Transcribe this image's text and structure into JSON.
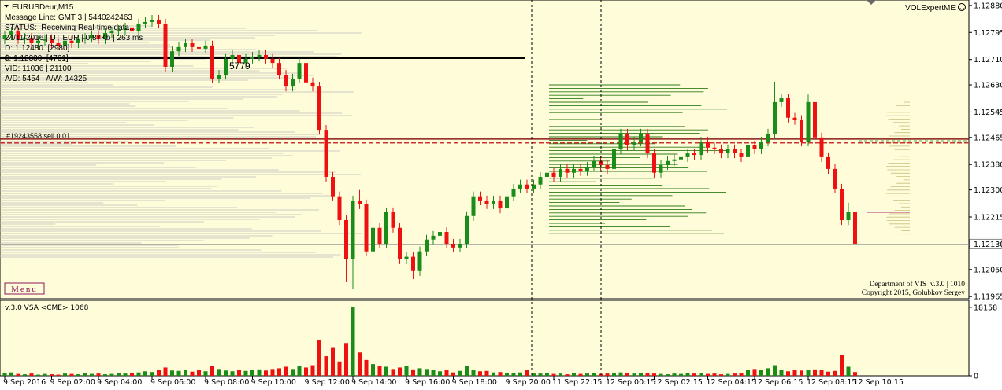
{
  "header": {
    "lines": [
      "Message Line: GMT 3 | 5440242463",
      "STATUS:  Receiving Real-time data...",
      "24/11/2016 | UT EUR | 0.87Kb | 263 ms",
      "D: 1.12480  [2980]",
      "$: 1.12330  [4761]",
      "VID: 11036 | 21100",
      "A/D: 5454 | A/W: 14325"
    ],
    "indicator": "VOLExpertME",
    "menu": "Menu",
    "credits": [
      "Department of VIS  v.3.0 | 1010",
      "Copyright 2015, Golubkov Sergey"
    ]
  },
  "chart_data": [
    {
      "type": "candlestick",
      "title": "EURUSDeur,M15",
      "categories": [
        "9 Sep 2016",
        null,
        null,
        null,
        null,
        null,
        null,
        "9 Sep 02:00",
        null,
        null,
        null,
        null,
        null,
        null,
        "9 Sep 04:00",
        null,
        null,
        null,
        null,
        null,
        null,
        null,
        "9 Sep 06:00",
        null,
        null,
        null,
        null,
        null,
        null,
        null,
        "9 Sep 08:00",
        null,
        null,
        null,
        null,
        null,
        null,
        "9 Sep 10:00",
        null,
        null,
        null,
        null,
        null,
        null,
        null,
        "9 Sep 12:00",
        null,
        null,
        null,
        null,
        null,
        null,
        "9 Sep 14:00",
        null,
        null,
        null,
        null,
        null,
        null,
        null,
        "9 Sep 16:00",
        null,
        null,
        null,
        null,
        null,
        null,
        "9 Sep 18:00",
        null,
        null,
        null,
        null,
        null,
        null,
        null,
        "9 Sep 20:00",
        null,
        null,
        null,
        null,
        null,
        null,
        "11 Sep 22:15",
        null,
        null,
        null,
        null,
        null,
        null,
        null,
        "12 Sep 00:15",
        null,
        null,
        null,
        null,
        null,
        null,
        "12 Sep 02:15",
        null,
        null,
        null,
        null,
        null,
        null,
        null,
        "12 Sep 04:15",
        null,
        null,
        null,
        null,
        null,
        null,
        "12 Sep 06:15",
        null,
        null,
        null,
        null,
        null,
        null,
        null,
        "12 Sep 08:15",
        null,
        null,
        null,
        null,
        null,
        null,
        "12 Sep 10:15"
      ],
      "open": [
        1.12774,
        1.12786,
        1.12798,
        1.12774,
        1.12778,
        1.12761,
        1.12769,
        1.12774,
        1.12761,
        1.12754,
        1.12769,
        1.12761,
        1.12774,
        1.12778,
        1.12786,
        1.12774,
        1.12793,
        1.12798,
        1.12803,
        1.12811,
        1.12798,
        1.12823,
        1.12828,
        1.12835,
        1.12823,
        1.12687,
        1.12736,
        1.12749,
        1.12761,
        1.12749,
        1.12744,
        1.12754,
        1.1265,
        1.12662,
        1.12712,
        1.12724,
        1.12699,
        1.12712,
        1.12719,
        1.12724,
        1.12712,
        1.12699,
        1.12662,
        1.12625,
        1.1265,
        1.12699,
        1.12638,
        1.12625,
        1.12489,
        1.12341,
        1.1228,
        1.12205,
        1.12082,
        1.12267,
        1.12255,
        1.12107,
        1.12181,
        1.12131,
        1.1223,
        1.12181,
        1.12082,
        1.1209,
        1.12045,
        1.12107,
        1.12144,
        1.12156,
        1.12168,
        1.12131,
        1.12119,
        1.12131,
        1.12218,
        1.1228,
        1.12267,
        1.12255,
        1.12267,
        1.12242,
        1.1228,
        1.12304,
        1.12317,
        1.12304,
        1.12317,
        1.12341,
        1.12354,
        1.12341,
        1.12366,
        1.12354,
        1.12366,
        1.12359,
        1.12373,
        1.12391,
        1.12378,
        1.12366,
        1.12428,
        1.12477,
        1.1244,
        1.12452,
        1.12477,
        1.12415,
        1.12354,
        1.12378,
        1.12391,
        1.12396,
        1.12403,
        1.12415,
        1.1241,
        1.12452,
        1.12433,
        1.12428,
        1.12415,
        1.12428,
        1.12415,
        1.12403,
        1.1244,
        1.12428,
        1.12452,
        1.12477,
        1.12576,
        1.12588,
        1.12527,
        1.1252,
        1.12452,
        1.12576,
        1.12465,
        1.12403,
        1.12366,
        1.12304,
        1.12205,
        1.1223
      ],
      "high": [
        1.12801,
        1.12813,
        1.12813,
        1.12793,
        1.12793,
        1.12784,
        1.12789,
        1.12789,
        1.12776,
        1.12784,
        1.12784,
        1.12789,
        1.12793,
        1.12801,
        1.12801,
        1.12808,
        1.12813,
        1.12818,
        1.12826,
        1.12826,
        1.12838,
        1.12843,
        1.1285,
        1.1285,
        1.12838,
        1.12751,
        1.12764,
        1.12776,
        1.12776,
        1.12764,
        1.12769,
        1.12769,
        1.12677,
        1.12727,
        1.12739,
        1.12739,
        1.12727,
        1.12734,
        1.12739,
        1.12739,
        1.12727,
        1.12714,
        1.12677,
        1.12665,
        1.12714,
        1.12714,
        1.12653,
        1.1264,
        1.12504,
        1.12356,
        1.12295,
        1.1222,
        1.12282,
        1.123,
        1.1227,
        1.12196,
        1.12196,
        1.12245,
        1.12245,
        1.12196,
        1.12105,
        1.12105,
        1.12122,
        1.12159,
        1.12171,
        1.12183,
        1.12183,
        1.12146,
        1.12146,
        1.12233,
        1.12295,
        1.12295,
        1.12282,
        1.12282,
        1.12282,
        1.12295,
        1.12319,
        1.12332,
        1.12332,
        1.12332,
        1.12356,
        1.12369,
        1.12369,
        1.12381,
        1.12381,
        1.12381,
        1.12381,
        1.12388,
        1.12406,
        1.12406,
        1.12393,
        1.12443,
        1.12492,
        1.12492,
        1.12467,
        1.12492,
        1.12492,
        1.1243,
        1.12393,
        1.12406,
        1.12411,
        1.12418,
        1.1243,
        1.1243,
        1.12467,
        1.12467,
        1.12448,
        1.12443,
        1.12443,
        1.12443,
        1.1243,
        1.12455,
        1.12455,
        1.12467,
        1.12492,
        1.1264,
        1.12603,
        1.12603,
        1.12542,
        1.12535,
        1.126,
        1.12591,
        1.1248,
        1.12418,
        1.12381,
        1.12319,
        1.1226,
        1.12245
      ],
      "low": [
        1.12759,
        1.12771,
        1.12759,
        1.12759,
        1.12746,
        1.12746,
        1.12754,
        1.12746,
        1.12739,
        1.12739,
        1.12746,
        1.12746,
        1.12759,
        1.12763,
        1.12759,
        1.12759,
        1.12778,
        1.12783,
        1.12788,
        1.12783,
        1.12783,
        1.12808,
        1.12813,
        1.12808,
        1.12672,
        1.12672,
        1.12721,
        1.12734,
        1.12734,
        1.12729,
        1.12729,
        1.12635,
        1.12635,
        1.12647,
        1.12697,
        1.12684,
        1.12684,
        1.12697,
        1.12704,
        1.12697,
        1.12684,
        1.12647,
        1.1261,
        1.1261,
        1.12635,
        1.12623,
        1.1261,
        1.12474,
        1.12326,
        1.12265,
        1.1219,
        1.1201,
        1.1199,
        1.1224,
        1.12092,
        1.12092,
        1.12116,
        1.12116,
        1.12166,
        1.12067,
        1.12067,
        1.1202,
        1.1203,
        1.12092,
        1.12129,
        1.12141,
        1.12116,
        1.12104,
        1.12104,
        1.12116,
        1.12203,
        1.12252,
        1.1224,
        1.1224,
        1.12227,
        1.12227,
        1.12265,
        1.12289,
        1.12289,
        1.12289,
        1.12302,
        1.12326,
        1.12326,
        1.12326,
        1.12339,
        1.12339,
        1.12344,
        1.12344,
        1.12358,
        1.12363,
        1.12351,
        1.12351,
        1.12413,
        1.12425,
        1.12425,
        1.12437,
        1.124,
        1.12339,
        1.12339,
        1.12363,
        1.12376,
        1.12381,
        1.12388,
        1.12395,
        1.12395,
        1.12418,
        1.12413,
        1.124,
        1.124,
        1.124,
        1.12388,
        1.12388,
        1.12413,
        1.12413,
        1.12437,
        1.12462,
        1.12561,
        1.12512,
        1.12505,
        1.12437,
        1.12437,
        1.1245,
        1.12388,
        1.12351,
        1.12289,
        1.1219,
        1.1219,
        1.1211
      ],
      "close": [
        1.12786,
        1.12798,
        1.12774,
        1.12778,
        1.12761,
        1.12769,
        1.12774,
        1.12761,
        1.12754,
        1.12769,
        1.12761,
        1.12774,
        1.12778,
        1.12786,
        1.12774,
        1.12793,
        1.12798,
        1.12803,
        1.12811,
        1.12798,
        1.12823,
        1.12828,
        1.12835,
        1.12823,
        1.12687,
        1.12736,
        1.12749,
        1.12761,
        1.12749,
        1.12744,
        1.12754,
        1.1265,
        1.12662,
        1.12712,
        1.12724,
        1.12699,
        1.12712,
        1.12719,
        1.12724,
        1.12712,
        1.12699,
        1.12662,
        1.12625,
        1.1265,
        1.12699,
        1.12638,
        1.12625,
        1.12489,
        1.12341,
        1.1228,
        1.12205,
        1.12082,
        1.12267,
        1.12255,
        1.12107,
        1.12181,
        1.12131,
        1.1223,
        1.12181,
        1.12082,
        1.1209,
        1.12045,
        1.12107,
        1.12144,
        1.12156,
        1.12168,
        1.12131,
        1.12119,
        1.12131,
        1.12218,
        1.1228,
        1.12267,
        1.12255,
        1.12267,
        1.12242,
        1.1228,
        1.12304,
        1.12317,
        1.12304,
        1.12317,
        1.12341,
        1.12354,
        1.12341,
        1.12366,
        1.12354,
        1.12366,
        1.12359,
        1.12373,
        1.12391,
        1.12378,
        1.12366,
        1.12428,
        1.12477,
        1.1244,
        1.12452,
        1.12477,
        1.12415,
        1.12354,
        1.12378,
        1.12391,
        1.12396,
        1.12403,
        1.12415,
        1.1241,
        1.12452,
        1.12433,
        1.12428,
        1.12415,
        1.12428,
        1.12415,
        1.12403,
        1.1244,
        1.12428,
        1.12452,
        1.12477,
        1.12576,
        1.12588,
        1.12527,
        1.1252,
        1.12452,
        1.12576,
        1.12465,
        1.12403,
        1.12366,
        1.12304,
        1.12205,
        1.1223,
        1.12131
      ],
      "up_color": "#1a8c1a",
      "down_color": "#ee1111",
      "ylim": [
        1.11958,
        1.12897
      ],
      "yticks": [
        {
          "value": 1.1288,
          "label": "1.12880"
        },
        1.12795,
        {
          "value": 1.1271,
          "label": "1.12710"
        },
        {
          "value": 1.1263,
          "label": "1.12630"
        },
        1.12545,
        1.12465,
        {
          "value": 1.1238,
          "label": "1.12380"
        },
        {
          "value": 1.123,
          "label": "1.12300"
        },
        1.12215,
        {
          "value": 1.1205,
          "label": "1.12050"
        },
        1.11965
      ],
      "current_price": {
        "value": 1.1213,
        "label": "1.12130"
      },
      "lines": [
        {
          "price": 1.12714,
          "color": "#000000"
        },
        {
          "price": 1.1246,
          "color": "#8b1a1a"
        },
        {
          "price": 1.12448,
          "color": "#cc3333",
          "dashed": true
        }
      ],
      "annotation": "5779",
      "order_label": "#19243558 sell 0.01"
    },
    {
      "type": "bar",
      "title": "v.3.0 VSA <CME> 1068",
      "values": [
        700,
        900,
        500,
        400,
        600,
        300,
        500,
        400,
        300,
        600,
        500,
        400,
        700,
        500,
        600,
        400,
        500,
        800,
        600,
        700,
        900,
        1200,
        1000,
        1500,
        2200,
        1400,
        1300,
        1600,
        1100,
        1500,
        1200,
        2600,
        1800,
        1400,
        1200,
        1500,
        1300,
        1600,
        1700,
        1400,
        1800,
        2000,
        2400,
        1800,
        2500,
        2200,
        2800,
        9500,
        5200,
        7600,
        3800,
        8700,
        18158,
        6200,
        4200,
        3100,
        2500,
        2400,
        1800,
        2200,
        2600,
        1700,
        2000,
        1800,
        1600,
        1200,
        1500,
        900,
        1300,
        2500,
        1600,
        1200,
        1300,
        900,
        1000,
        800,
        700,
        900,
        1500,
        600,
        600,
        700,
        500,
        600,
        400,
        800,
        500,
        600,
        700,
        500,
        600,
        800,
        900,
        700,
        600,
        800,
        700,
        600,
        500,
        400,
        600,
        500,
        700,
        600,
        700,
        500,
        600,
        400,
        500,
        600,
        700,
        1500,
        1800,
        1600,
        2000,
        2800,
        1500,
        1200,
        1600,
        1400,
        1600,
        1700,
        1500,
        1100,
        1300,
        5600,
        2400,
        1000
      ],
      "ylim": [
        0,
        19800
      ],
      "yticks": [
        18158,
        0
      ]
    }
  ]
}
